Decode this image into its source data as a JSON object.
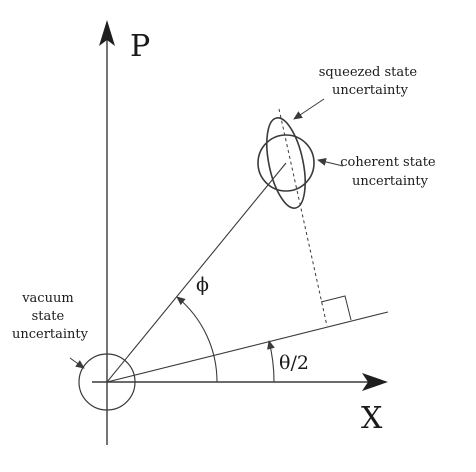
{
  "axes": {
    "x_label": "X",
    "y_label": "P"
  },
  "angles": {
    "phi_label": "ϕ",
    "theta_label": "θ/2"
  },
  "annotations": {
    "vacuum": [
      "vacuum",
      "state",
      "uncertainty"
    ],
    "squeezed": [
      "squeezed state",
      "uncertainty"
    ],
    "coherent": [
      "coherent state",
      "uncertainty"
    ]
  },
  "colors": {
    "ink": "#3a3a3a",
    "text": "#1a1a1a"
  }
}
